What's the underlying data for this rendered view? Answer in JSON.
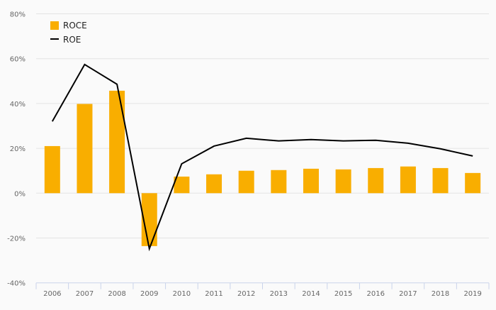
{
  "chart_data": {
    "type": "bar",
    "title": "",
    "xlabel": "",
    "ylabel": "",
    "categories": [
      "2006",
      "2007",
      "2008",
      "2009",
      "2010",
      "2011",
      "2012",
      "2013",
      "2014",
      "2015",
      "2016",
      "2017",
      "2018",
      "2019"
    ],
    "series": [
      {
        "name": "ROCE",
        "type": "bar",
        "color": "#f9ae00",
        "values": [
          21.0,
          39.8,
          45.7,
          -23.6,
          7.4,
          8.4,
          10.0,
          10.3,
          10.9,
          10.6,
          11.2,
          11.9,
          11.2,
          9.0
        ]
      },
      {
        "name": "ROE",
        "type": "line",
        "color": "#000000",
        "values": [
          32.0,
          57.4,
          48.6,
          -24.8,
          13.1,
          21.0,
          24.5,
          23.3,
          23.9,
          23.3,
          23.6,
          22.3,
          19.8,
          16.6
        ]
      }
    ],
    "ylim": [
      -40,
      80
    ],
    "yticks": [
      -40,
      -20,
      0,
      20,
      40,
      60,
      80
    ],
    "ytick_labels": [
      "-40%",
      "-20%",
      "0%",
      "20%",
      "40%",
      "60%",
      "80%"
    ],
    "grid": true,
    "legend_position": "top-left"
  }
}
